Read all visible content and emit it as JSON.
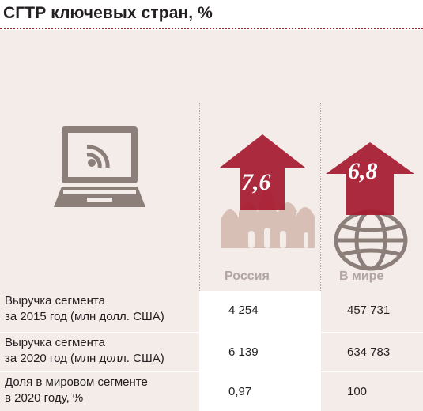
{
  "title": "СГТР ключевых стран, %",
  "chart_data": {
    "type": "table",
    "series": [
      {
        "name": "Россия",
        "cagr": "7,6"
      },
      {
        "name": "В мире",
        "cagr": "6,8"
      }
    ],
    "rows": [
      {
        "label_line1": "Выручка сегмента",
        "label_line2": "за 2015 год (млн долл. США)",
        "values": [
          "4 254",
          "457 731"
        ]
      },
      {
        "label_line1": "Выручка сегмента",
        "label_line2": "за 2020 год (млн долл. США)",
        "values": [
          "6 139",
          "634 783"
        ]
      },
      {
        "label_line1": "Доля в мировом сегменте",
        "label_line2": "в 2020 году, %",
        "values": [
          "0,97",
          "100"
        ]
      }
    ]
  },
  "icons": [
    "laptop-wifi-icon",
    "up-arrow-icon",
    "kremlin-icon",
    "globe-icon"
  ],
  "colors": {
    "accent": "#a6192e",
    "panel": "#f3ece9",
    "icon_gray": "#8c7f7a",
    "header_gray": "#b3a6a1"
  }
}
